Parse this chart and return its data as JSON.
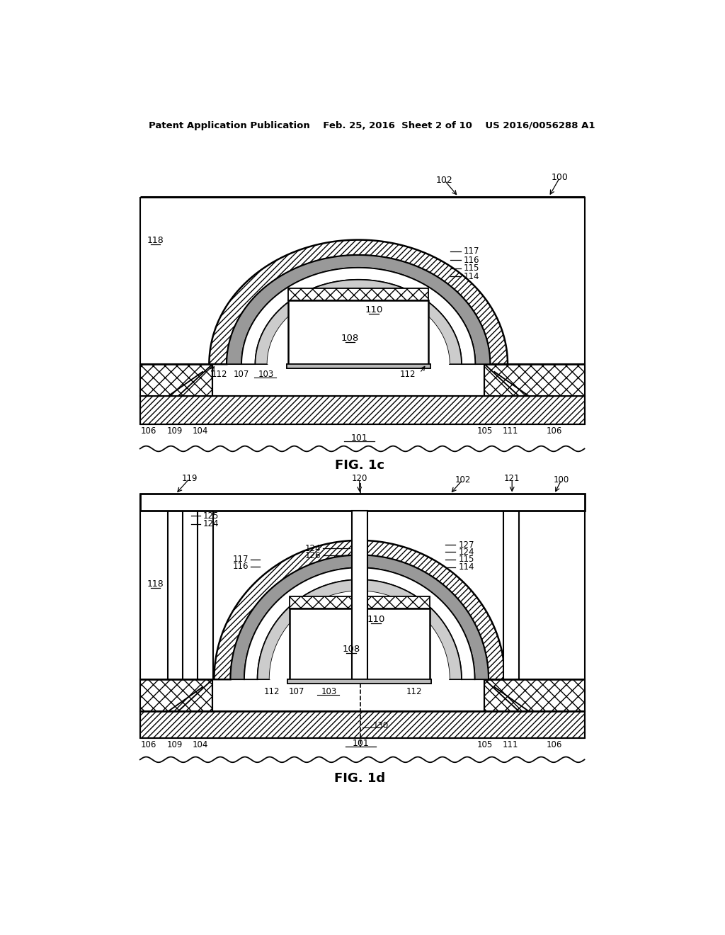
{
  "bg_color": "#ffffff",
  "line_color": "#000000",
  "fig_width": 10.24,
  "fig_height": 13.2,
  "header": "Patent Application Publication    Feb. 25, 2016  Sheet 2 of 10    US 2016/0056288 A1",
  "fig1c_label": "FIG. 1c",
  "fig1d_label": "FIG. 1d",
  "arch_hatch": "////",
  "sti_hatch": "xx",
  "sub_hatch": "////"
}
